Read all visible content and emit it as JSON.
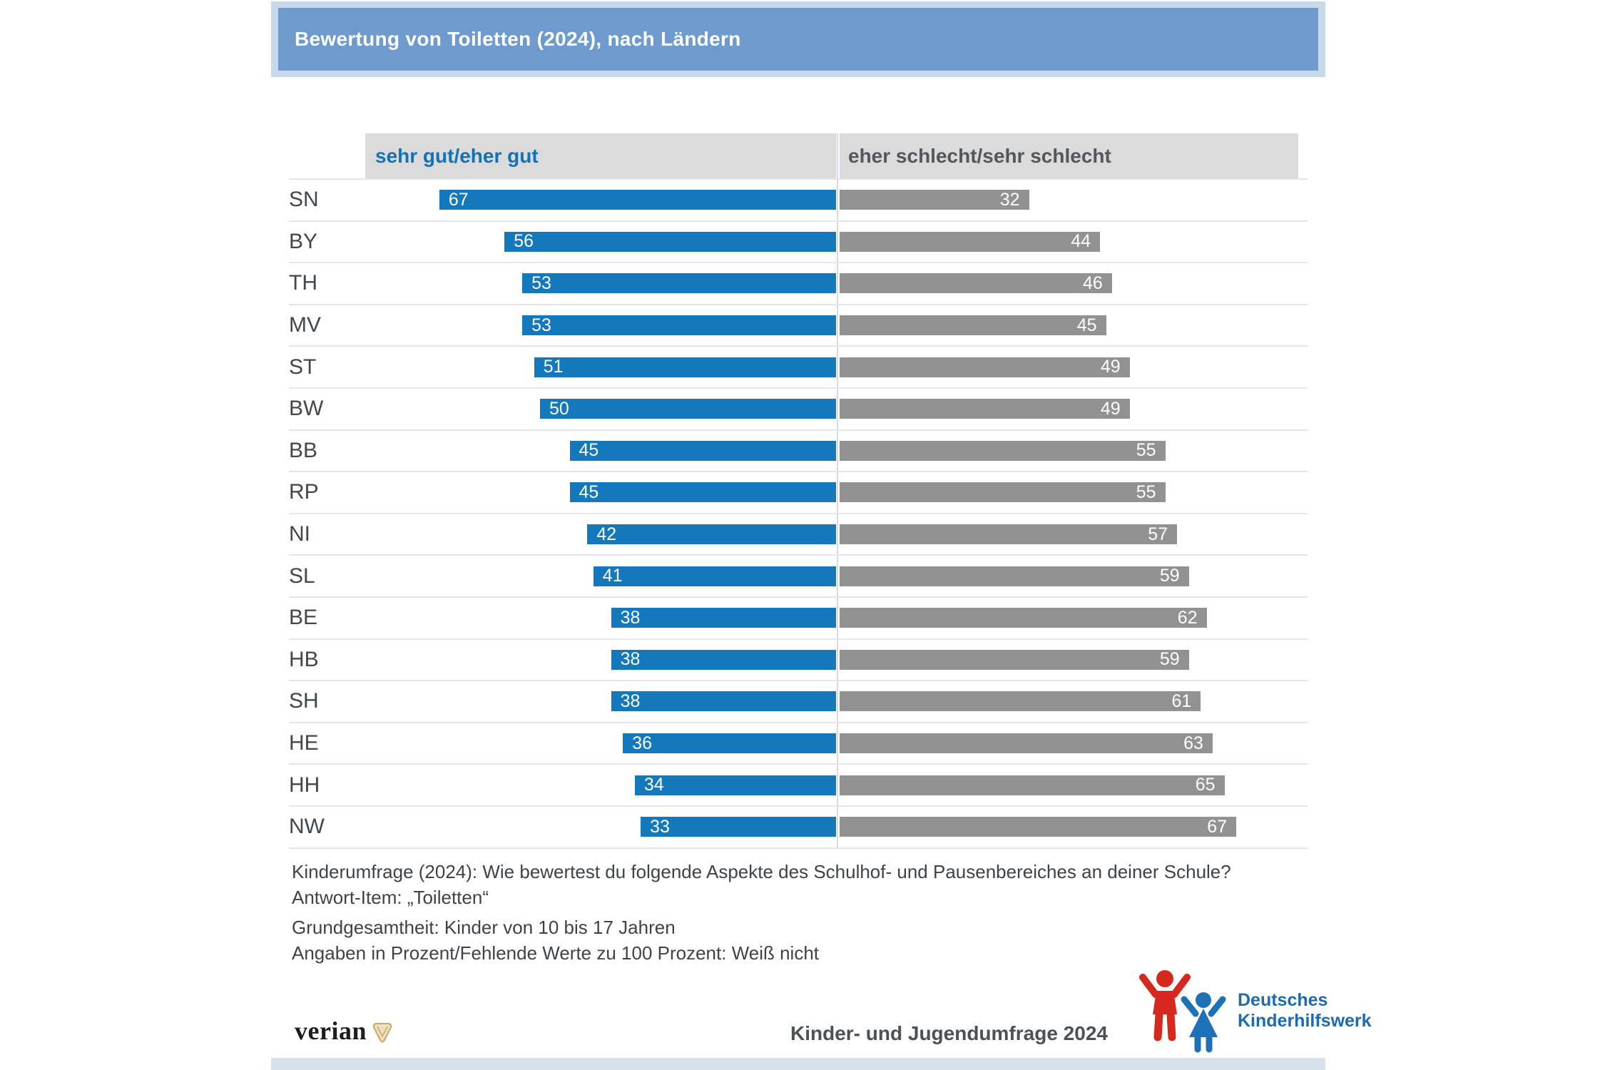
{
  "title": "Bewertung von Toiletten (2024), nach Ländern",
  "legend": {
    "positive": "sehr gut/eher gut",
    "negative": "eher schlecht/sehr schlecht"
  },
  "chart_data": {
    "type": "bar",
    "orientation": "diverging-horizontal",
    "title": "Bewertung von Toiletten (2024), nach Ländern",
    "categories": [
      "SN",
      "BY",
      "TH",
      "MV",
      "ST",
      "BW",
      "BB",
      "RP",
      "NI",
      "SL",
      "BE",
      "HB",
      "SH",
      "HE",
      "HH",
      "NW"
    ],
    "series": [
      {
        "name": "sehr gut/eher gut",
        "color": "#1478bd",
        "values": [
          67,
          56,
          53,
          53,
          51,
          50,
          45,
          45,
          42,
          41,
          38,
          38,
          38,
          36,
          34,
          33
        ]
      },
      {
        "name": "eher schlecht/sehr schlecht",
        "color": "#929292",
        "values": [
          32,
          44,
          46,
          45,
          49,
          49,
          55,
          55,
          57,
          59,
          62,
          59,
          61,
          63,
          65,
          67
        ]
      }
    ],
    "value_unit": "percent",
    "xlim": [
      0,
      100
    ],
    "grid": "row-separators",
    "legend_position": "top-band"
  },
  "footnotes": {
    "question": "Kinderumfrage (2024): Wie bewertest du folgende Aspekte des Schulhof- und Pausenbereiches an deiner Schule?",
    "item": "Antwort-Item: „Toiletten“",
    "population": "Grundgesamtheit: Kinder von 10 bis 17 Jahren",
    "note": "Angaben in Prozent/Fehlende Werte zu 100 Prozent: Weiß nicht"
  },
  "footer": {
    "source_logo": "verian",
    "survey": "Kinder- und Jugendumfrage 2024",
    "org_line1": "Deutsches",
    "org_line2": "Kinderhilfswerk"
  },
  "colors": {
    "title_bar": "#6f9ace",
    "title_frame": "#c9d9ec",
    "header_band": "#dbdbdb",
    "header_positive_text": "#1173b6",
    "header_negative_text": "#53575b",
    "positive_bar": "#1478bd",
    "negative_bar": "#929292",
    "bar_value_text": "#ffffff",
    "state_label": "#42474c",
    "row_separator": "#e5e6e7",
    "dkhw_red": "#d6281e",
    "dkhw_blue": "#1d71b8",
    "verian_gold": "#c9a96b"
  }
}
